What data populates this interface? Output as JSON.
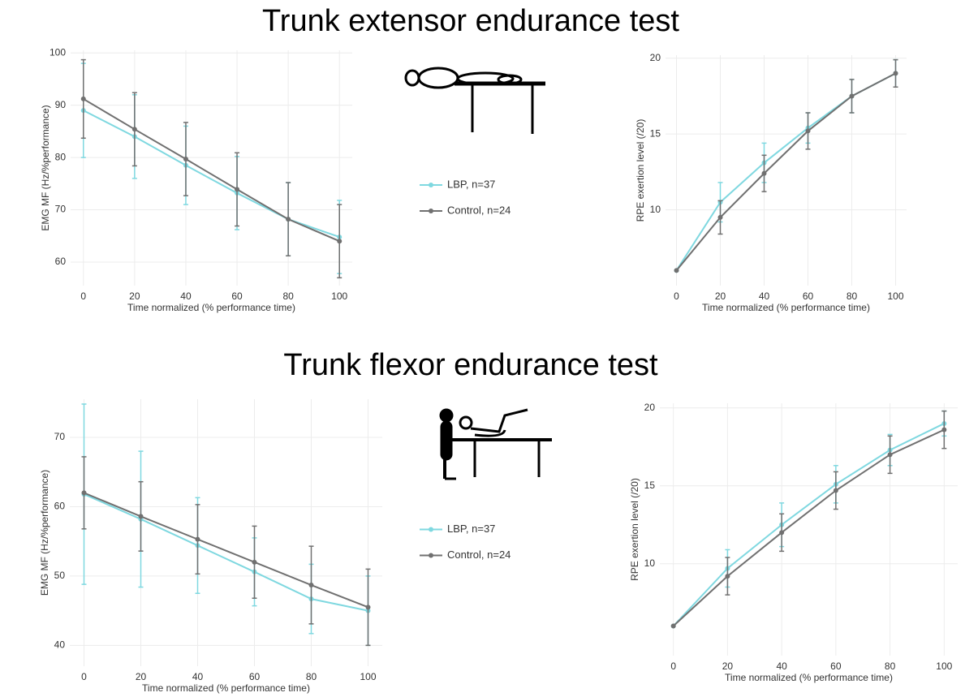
{
  "chart_data": [
    {
      "type": "line",
      "title": "Trunk extensor endurance test",
      "xlabel": "Time normalized (% performance time)",
      "ylabel": "EMG MF (Hz/%performance)",
      "x": [
        0,
        20,
        40,
        60,
        80,
        100
      ],
      "xlim": [
        -5,
        105
      ],
      "xticks": [
        0,
        20,
        40,
        60,
        80,
        100
      ],
      "ylim": [
        55.5,
        100.5
      ],
      "yticks": [
        60,
        70,
        80,
        90,
        100
      ],
      "grid": true,
      "legend": "right",
      "series": [
        {
          "name": "LBP, n=37",
          "color": "#7fd8e0",
          "values": [
            89,
            84,
            78.5,
            73.2,
            68.2,
            64.8
          ],
          "errors": [
            9,
            8,
            7.5,
            7,
            7,
            7
          ]
        },
        {
          "name": "Control, n=24",
          "color": "#707070",
          "values": [
            91.2,
            85.4,
            79.7,
            73.9,
            68.2,
            64
          ],
          "errors": [
            7.5,
            7,
            7,
            7,
            7,
            7
          ]
        }
      ]
    },
    {
      "type": "line",
      "xlabel": "Time normalized (% performance time)",
      "ylabel": "RPE exertion level (/20)",
      "x": [
        0,
        20,
        40,
        60,
        80,
        100
      ],
      "xlim": [
        -5,
        105
      ],
      "xticks": [
        0,
        20,
        40,
        60,
        80,
        100
      ],
      "ylim": [
        5,
        20.2
      ],
      "yticks": [
        10,
        15,
        20
      ],
      "grid": true,
      "series": [
        {
          "color": "#7fd8e0",
          "values": [
            6,
            10.5,
            13.1,
            15.4,
            17.5,
            19
          ],
          "errors": [
            0,
            1.3,
            1.3,
            1,
            1.1,
            0.9
          ]
        },
        {
          "color": "#707070",
          "values": [
            6,
            9.5,
            12.4,
            15.2,
            17.5,
            19
          ],
          "errors": [
            0,
            1.1,
            1.2,
            1.2,
            1.1,
            0.9
          ]
        }
      ]
    },
    {
      "type": "line",
      "title": "Trunk flexor endurance test",
      "xlabel": "Time normalized (% performance time)",
      "ylabel": "EMG MF (Hz/%performance)",
      "x": [
        0,
        20,
        40,
        60,
        80,
        100
      ],
      "xlim": [
        -5,
        105
      ],
      "xticks": [
        0,
        20,
        40,
        60,
        80,
        100
      ],
      "ylim": [
        37,
        75.5
      ],
      "yticks": [
        40,
        50,
        60,
        70
      ],
      "grid": true,
      "legend": "right",
      "series": [
        {
          "name": "LBP, n=37",
          "color": "#7fd8e0",
          "values": [
            61.8,
            58.2,
            54.4,
            50.6,
            46.7,
            45
          ],
          "errors": [
            13,
            9.8,
            6.9,
            4.9,
            5,
            5
          ]
        },
        {
          "name": "Control, n=24",
          "color": "#707070",
          "values": [
            62,
            58.6,
            55.3,
            52,
            48.7,
            45.5
          ],
          "errors": [
            5.2,
            5,
            5,
            5.2,
            5.6,
            5.5
          ]
        }
      ]
    },
    {
      "type": "line",
      "xlabel": "Time normalized (% performance time)",
      "ylabel": "RPE exertion level (/20)",
      "x": [
        0,
        20,
        40,
        60,
        80,
        100
      ],
      "xlim": [
        -5,
        105
      ],
      "xticks": [
        0,
        20,
        40,
        60,
        80,
        100
      ],
      "ylim": [
        4.1,
        20.3
      ],
      "yticks": [
        10,
        15,
        20
      ],
      "grid": true,
      "series": [
        {
          "color": "#7fd8e0",
          "values": [
            6,
            9.7,
            12.5,
            15.1,
            17.3,
            19
          ],
          "errors": [
            0,
            1.2,
            1.4,
            1.2,
            1,
            0.8
          ]
        },
        {
          "color": "#707070",
          "values": [
            6,
            9.2,
            12,
            14.7,
            17,
            18.6
          ],
          "errors": [
            0,
            1.2,
            1.2,
            1.2,
            1.2,
            1.2
          ]
        }
      ]
    }
  ]
}
